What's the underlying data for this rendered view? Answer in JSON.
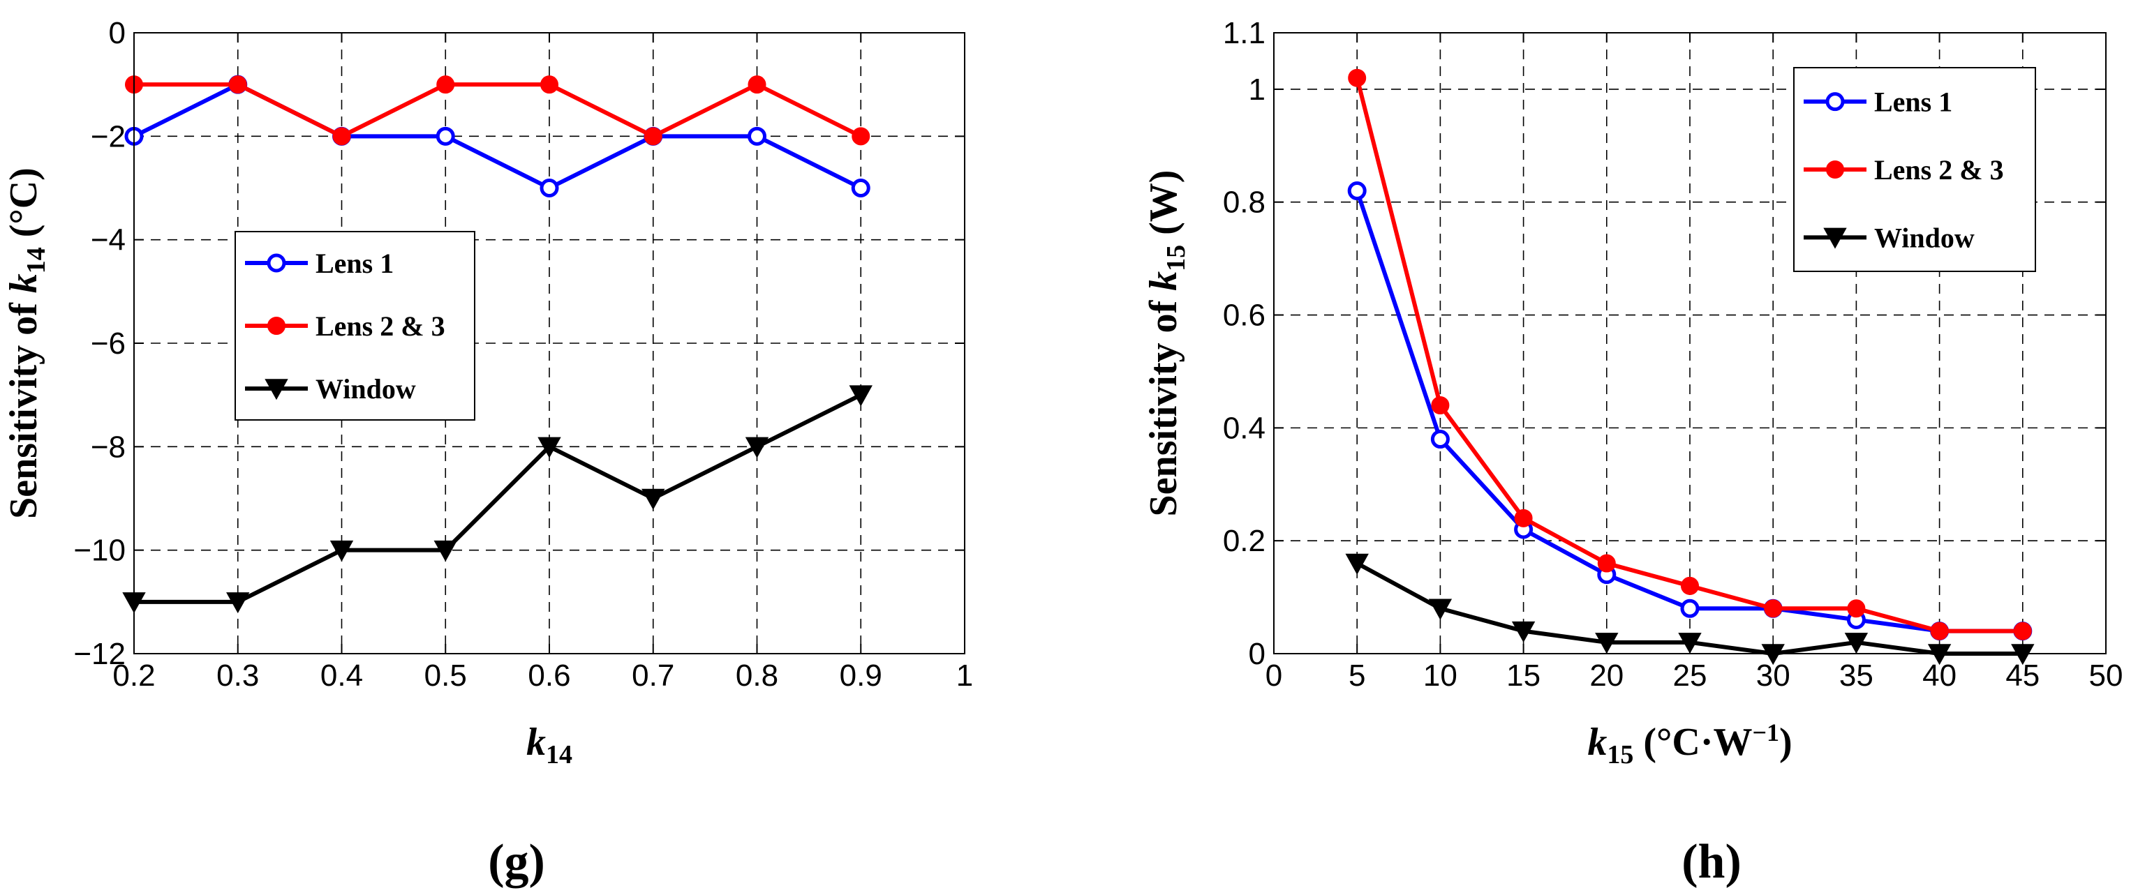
{
  "colors": {
    "lens1": "#0000ff",
    "lens23": "#ff0000",
    "window": "#000000"
  },
  "chart_data": [
    {
      "panel_label": "(g)",
      "type": "line",
      "x": [
        0.2,
        0.3,
        0.4,
        0.5,
        0.6,
        0.7,
        0.8,
        0.9
      ],
      "xlim": [
        0.2,
        1
      ],
      "ylim": [
        -12,
        0
      ],
      "xticks": [
        0.2,
        0.3,
        0.4,
        0.5,
        0.6,
        0.7,
        0.8,
        0.9,
        1
      ],
      "xtick_labels": [
        "0.2",
        "0.3",
        "0.4",
        "0.5",
        "0.6",
        "0.7",
        "0.8",
        "0.9",
        "1"
      ],
      "yticks": [
        0,
        -2,
        -4,
        -6,
        -8,
        -10,
        -12
      ],
      "ytick_labels": [
        "0",
        "−2",
        "−4",
        "−6",
        "−8",
        "−10",
        "−12"
      ],
      "xlabel": {
        "main": "k",
        "sub": "14",
        "suffix": ""
      },
      "ylabel": {
        "prefix": "Sensitivity of ",
        "var": "k",
        "sub": "14",
        "suffix": "  (°C)"
      },
      "grid": true,
      "legend_placement": "center-left",
      "series": [
        {
          "name": "Lens 1",
          "marker": "open-circle",
          "color_key": "lens1",
          "values": [
            -2,
            -1,
            -2,
            -2,
            -3,
            -2,
            -2,
            -3
          ]
        },
        {
          "name": "Lens 2 & 3",
          "marker": "filled-circle",
          "color_key": "lens23",
          "values": [
            -1,
            -1,
            -2,
            -1,
            -1,
            -2,
            -1,
            -2
          ]
        },
        {
          "name": "Window",
          "marker": "down-triangle",
          "color_key": "window",
          "values": [
            -11,
            -11,
            -10,
            -10,
            -8,
            -9,
            -8,
            -7
          ]
        }
      ]
    },
    {
      "panel_label": "(h)",
      "type": "line",
      "x": [
        5,
        10,
        15,
        20,
        25,
        30,
        35,
        40,
        45
      ],
      "xlim": [
        0,
        50
      ],
      "ylim": [
        0,
        1.1
      ],
      "xticks": [
        0,
        5,
        10,
        15,
        20,
        25,
        30,
        35,
        40,
        45,
        50
      ],
      "xtick_labels": [
        "0",
        "5",
        "10",
        "15",
        "20",
        "25",
        "30",
        "35",
        "40",
        "45",
        "50"
      ],
      "yticks": [
        0,
        0.2,
        0.4,
        0.6,
        0.8,
        1,
        1.1
      ],
      "ytick_labels": [
        "0",
        "0.2",
        "0.4",
        "0.6",
        "0.8",
        "1",
        "1.1"
      ],
      "xlabel": {
        "main": "k",
        "sub": "15",
        "suffix": " (°C·W",
        "sup": "−1",
        "close": ")"
      },
      "ylabel": {
        "prefix": "Sensitivity of ",
        "var": "k",
        "sub": "15",
        "suffix": "  (W)"
      },
      "grid": true,
      "legend_placement": "top-right",
      "series": [
        {
          "name": "Lens 1",
          "marker": "open-circle",
          "color_key": "lens1",
          "values": [
            0.82,
            0.38,
            0.22,
            0.14,
            0.08,
            0.08,
            0.06,
            0.04,
            0.04
          ]
        },
        {
          "name": "Lens 2 & 3",
          "marker": "filled-circle",
          "color_key": "lens23",
          "values": [
            1.02,
            0.44,
            0.24,
            0.16,
            0.12,
            0.08,
            0.08,
            0.04,
            0.04
          ]
        },
        {
          "name": "Window",
          "marker": "down-triangle",
          "color_key": "window",
          "values": [
            0.16,
            0.08,
            0.04,
            0.02,
            0.02,
            0.0,
            0.02,
            0.0,
            0.0
          ]
        }
      ]
    }
  ]
}
